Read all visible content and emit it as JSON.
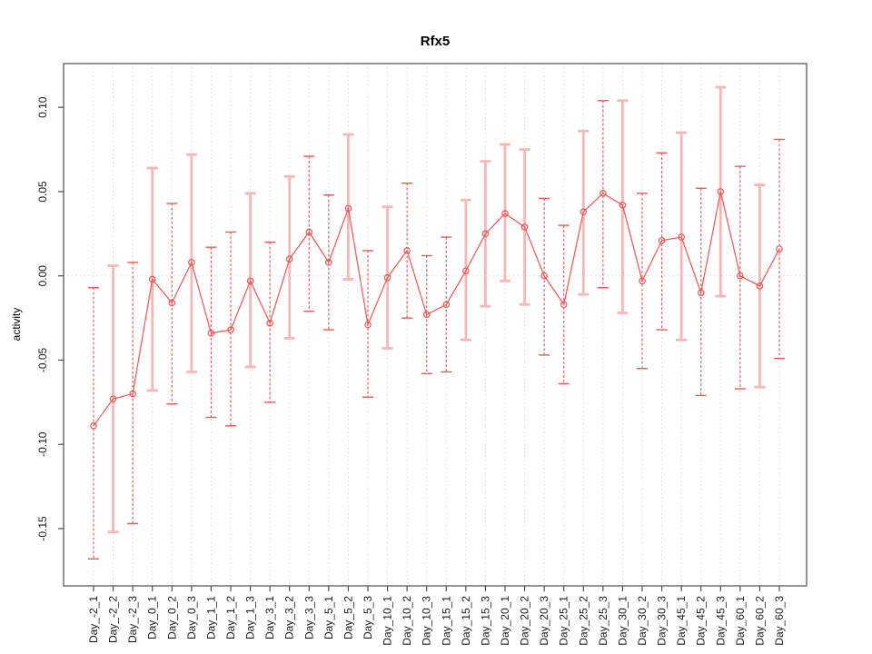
{
  "chart_data": {
    "type": "line",
    "title": "Rfx5",
    "xlabel": "",
    "ylabel": "activity",
    "legend": {
      "visible": false
    },
    "grid": {
      "vertical_dotted_per_category": true,
      "horizontal_zero_line_dotted": true
    },
    "ylim": [
      -0.184,
      0.126
    ],
    "ytick_labels": [
      "0.10",
      "0.05",
      "0.00",
      "-0.05",
      "-0.10",
      "-0.15"
    ],
    "ytick_values": [
      0.1,
      0.05,
      0.0,
      -0.05,
      -0.1,
      -0.15
    ],
    "categories": [
      "Day_-2_1",
      "Day_-2_2",
      "Day_-2_3",
      "Day_0_1",
      "Day_0_2",
      "Day_0_3",
      "Day_1_1",
      "Day_1_2",
      "Day_1_3",
      "Day_3_1",
      "Day_3_2",
      "Day_3_3",
      "Day_5_1",
      "Day_5_2",
      "Day_5_3",
      "Day_10_1",
      "Day_10_2",
      "Day_10_3",
      "Day_15_1",
      "Day_15_2",
      "Day_15_3",
      "Day_20_1",
      "Day_20_2",
      "Day_20_3",
      "Day_25_1",
      "Day_25_2",
      "Day_25_3",
      "Day_30_1",
      "Day_30_2",
      "Day_30_3",
      "Day_45_1",
      "Day_45_2",
      "Day_45_3",
      "Day_60_1",
      "Day_60_2",
      "Day_60_3"
    ],
    "series": [
      {
        "name": "activity",
        "marker": "open-circle",
        "values": [
          -0.089,
          -0.073,
          -0.07,
          -0.002,
          -0.016,
          0.008,
          -0.034,
          -0.032,
          -0.003,
          -0.028,
          0.01,
          0.026,
          0.008,
          0.04,
          -0.029,
          -0.001,
          0.015,
          -0.023,
          -0.017,
          0.003,
          0.025,
          0.037,
          0.029,
          0.0,
          -0.017,
          0.038,
          0.049,
          0.042,
          -0.003,
          0.021,
          0.023,
          -0.01,
          0.05,
          0.0,
          -0.006,
          0.016
        ],
        "ci_high": [
          -0.007,
          0.006,
          0.008,
          0.064,
          0.043,
          0.072,
          0.017,
          0.026,
          0.049,
          0.02,
          0.059,
          0.071,
          0.048,
          0.084,
          0.015,
          0.041,
          0.055,
          0.012,
          0.023,
          0.045,
          0.068,
          0.078,
          0.075,
          0.046,
          0.03,
          0.086,
          0.104,
          0.104,
          0.049,
          0.073,
          0.085,
          0.052,
          0.112,
          0.065,
          0.054,
          0.081
        ],
        "ci_low": [
          -0.168,
          -0.152,
          -0.147,
          -0.068,
          -0.076,
          -0.057,
          -0.084,
          -0.089,
          -0.054,
          -0.075,
          -0.037,
          -0.021,
          -0.032,
          -0.002,
          -0.072,
          -0.043,
          -0.025,
          -0.058,
          -0.057,
          -0.038,
          -0.018,
          -0.003,
          -0.017,
          -0.047,
          -0.064,
          -0.011,
          -0.007,
          -0.022,
          -0.055,
          -0.032,
          -0.038,
          -0.071,
          -0.012,
          -0.067,
          -0.066,
          -0.049
        ],
        "error_bar_styles": [
          "dashed",
          "solid",
          "dashed",
          "solid",
          "dashed",
          "solid",
          "dashed",
          "dashed",
          "solid",
          "dashed",
          "solid",
          "dashed",
          "dashed",
          "solid",
          "dashed",
          "solid",
          "dashed",
          "dashed",
          "dashed",
          "solid",
          "solid",
          "solid",
          "solid",
          "dashed",
          "dashed",
          "solid",
          "dashed",
          "solid",
          "dashed",
          "dashed",
          "solid",
          "dashed",
          "solid",
          "dashed",
          "solid",
          "dashed"
        ]
      }
    ],
    "colors": {
      "line": "#f25555",
      "point": "#f25555",
      "error_bar_solid": "#f8b7b7",
      "error_bar_dashed": "#ee5a52",
      "grid": "#dcdcdc",
      "zero_line": "#d8d8d8",
      "axis_box": "#7a7a7a",
      "tick": "#4d4d4d",
      "text": "#1a1a1a"
    }
  }
}
